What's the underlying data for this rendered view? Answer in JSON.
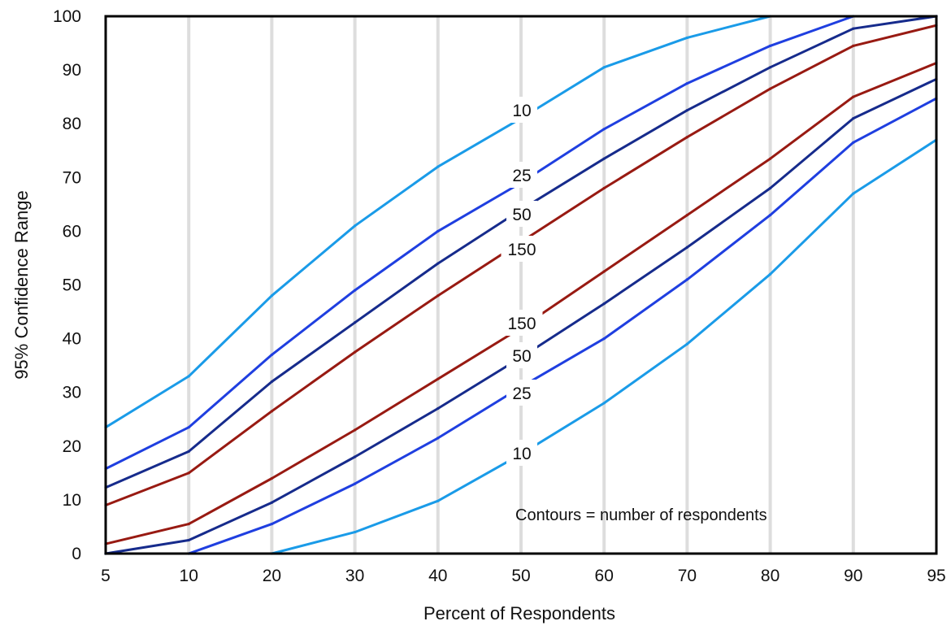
{
  "chart_data": {
    "type": "line",
    "xlabel": "Percent of Respondents",
    "ylabel": "95% Confidence Range",
    "x_ticks": [
      "5",
      "10",
      "20",
      "30",
      "40",
      "50",
      "60",
      "70",
      "80",
      "90",
      "95"
    ],
    "y_ticks": [
      "0",
      "10",
      "20",
      "30",
      "40",
      "50",
      "60",
      "70",
      "80",
      "90",
      "100"
    ],
    "ylim": [
      0,
      100
    ],
    "x_scale": "categorical-evenly-spaced",
    "grid": "vertical",
    "annotation": "Contours = number of respondents",
    "series": [
      {
        "label": "10",
        "bound": "upper",
        "color": "#1a9be8",
        "values": [
          23.5,
          33,
          48,
          61,
          72,
          81,
          90.5,
          96,
          100,
          100,
          100
        ]
      },
      {
        "label": "25",
        "bound": "upper",
        "color": "#1f3fe0",
        "values": [
          15.8,
          23.5,
          37,
          49,
          60,
          69,
          79,
          87.5,
          94.5,
          100,
          100
        ]
      },
      {
        "label": "50",
        "bound": "upper",
        "color": "#162b8c",
        "values": [
          12.3,
          19,
          32,
          43,
          54,
          64,
          73.5,
          82.5,
          90.5,
          97.7,
          100
        ]
      },
      {
        "label": "150",
        "bound": "upper",
        "color": "#981a12",
        "values": [
          9,
          15,
          26.5,
          37.5,
          48,
          58,
          68,
          77.5,
          86.5,
          94.5,
          98.3
        ]
      },
      {
        "label": "150",
        "bound": "lower",
        "color": "#981a12",
        "values": [
          1.8,
          5.5,
          14,
          23,
          32.5,
          42,
          52.5,
          63,
          73.5,
          85,
          91.3
        ]
      },
      {
        "label": "50",
        "bound": "lower",
        "color": "#162b8c",
        "values": [
          0,
          2.5,
          9.5,
          18,
          27,
          36.5,
          46.5,
          57,
          68,
          81,
          88.3
        ]
      },
      {
        "label": "25",
        "bound": "lower",
        "color": "#1f3fe0",
        "values": [
          0,
          0,
          5.5,
          13,
          21.5,
          31,
          40,
          51,
          63,
          76.5,
          84.7
        ]
      },
      {
        "label": "10",
        "bound": "lower",
        "color": "#1a9be8",
        "values": [
          0,
          0,
          0,
          4,
          9.8,
          18.5,
          28,
          39,
          52,
          67,
          77
        ]
      }
    ]
  }
}
